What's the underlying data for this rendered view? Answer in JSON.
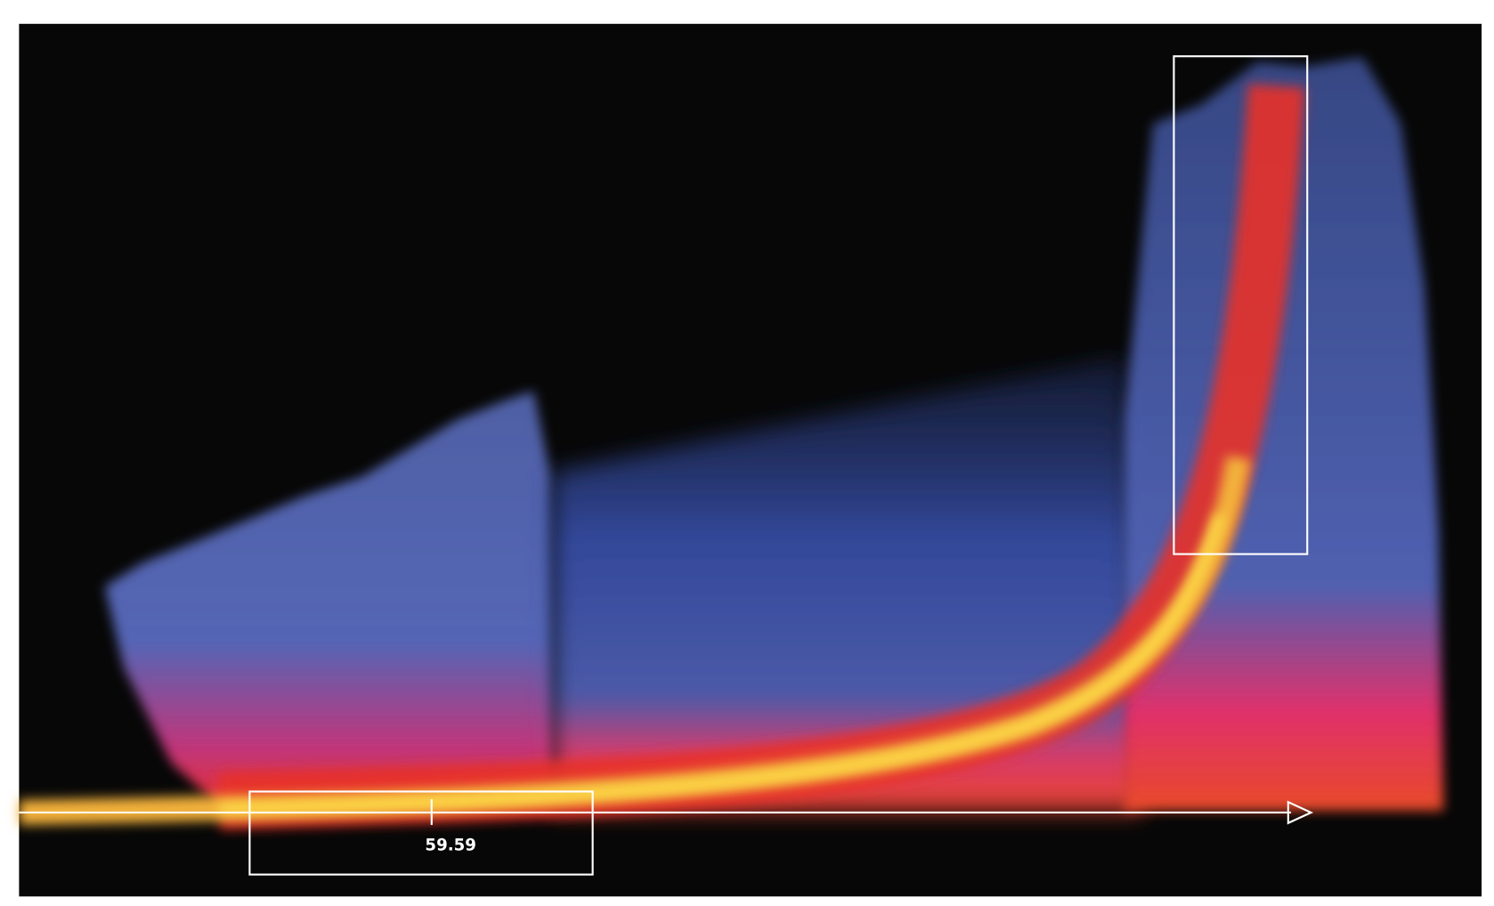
{
  "annotation": {
    "label": "59.59"
  }
}
